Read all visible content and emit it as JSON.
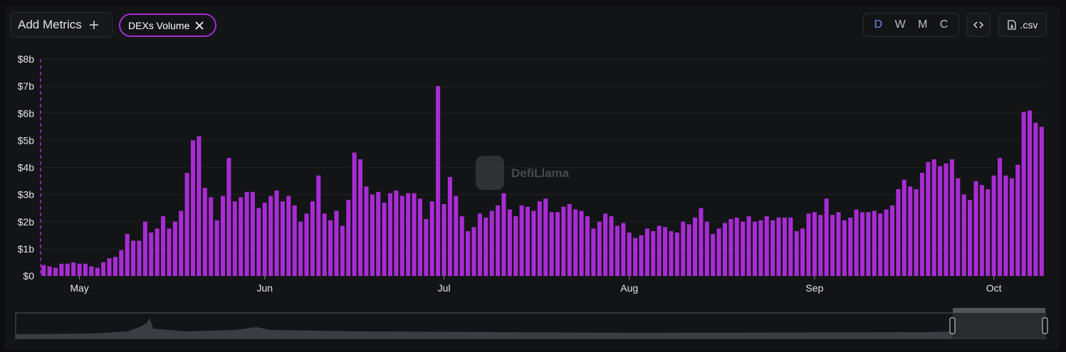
{
  "toolbar": {
    "add_metrics": "Add Metrics",
    "chip": "DEXs Volume",
    "periods": [
      "D",
      "W",
      "M",
      "C"
    ],
    "csv": ".csv"
  },
  "watermark": "DefiLlama",
  "chart_data": {
    "type": "bar",
    "color": "#a82cd3",
    "grid": true,
    "categories": [
      null,
      null,
      null,
      null,
      null,
      null,
      "May",
      null,
      null,
      null,
      null,
      null,
      null,
      null,
      null,
      null,
      null,
      null,
      null,
      null,
      null,
      null,
      null,
      null,
      null,
      null,
      null,
      null,
      null,
      null,
      null,
      null,
      null,
      null,
      null,
      null,
      null,
      "Jun",
      null,
      null,
      null,
      null,
      null,
      null,
      null,
      null,
      null,
      null,
      null,
      null,
      null,
      null,
      null,
      null,
      null,
      null,
      null,
      null,
      null,
      null,
      null,
      null,
      null,
      null,
      null,
      null,
      null,
      "Jul",
      null,
      null,
      null,
      null,
      null,
      null,
      null,
      null,
      null,
      null,
      null,
      null,
      null,
      null,
      null,
      null,
      null,
      null,
      null,
      null,
      null,
      null,
      null,
      null,
      null,
      null,
      null,
      null,
      null,
      null,
      "Aug",
      null,
      null,
      null,
      null,
      null,
      null,
      null,
      null,
      null,
      null,
      null,
      null,
      null,
      null,
      null,
      null,
      null,
      null,
      null,
      null,
      null,
      null,
      null,
      null,
      null,
      null,
      null,
      null,
      null,
      null,
      "Sep",
      null,
      null,
      null,
      null,
      null,
      null,
      null,
      null,
      null,
      null,
      null,
      null,
      null,
      null,
      null,
      null,
      null,
      null,
      null,
      null,
      null,
      null,
      null,
      null,
      null,
      null,
      null,
      null,
      null,
      "Oct",
      null,
      null,
      null,
      null,
      null,
      null,
      null,
      null
    ],
    "values": [
      0.4,
      0.35,
      0.3,
      0.45,
      0.45,
      0.5,
      0.45,
      0.45,
      0.35,
      0.3,
      0.5,
      0.65,
      0.7,
      0.95,
      1.55,
      1.3,
      1.3,
      2.0,
      1.6,
      1.75,
      2.2,
      1.75,
      2.0,
      2.4,
      3.8,
      5.0,
      5.15,
      3.25,
      2.9,
      2.05,
      2.95,
      4.35,
      2.75,
      2.9,
      3.1,
      3.1,
      2.5,
      2.7,
      2.95,
      3.15,
      2.75,
      2.95,
      2.6,
      2.0,
      2.3,
      2.75,
      3.7,
      2.3,
      2.05,
      2.4,
      1.85,
      2.8,
      4.55,
      4.3,
      3.3,
      3.0,
      3.1,
      2.7,
      3.05,
      3.15,
      2.95,
      3.05,
      3.05,
      2.85,
      2.1,
      2.75,
      7.0,
      2.65,
      3.65,
      2.95,
      2.2,
      1.65,
      1.8,
      2.3,
      2.15,
      2.4,
      2.6,
      3.05,
      2.45,
      2.2,
      2.6,
      2.55,
      2.4,
      2.75,
      2.85,
      2.35,
      2.35,
      2.55,
      2.65,
      2.45,
      2.4,
      2.2,
      1.75,
      2.0,
      2.3,
      2.2,
      1.85,
      1.95,
      1.6,
      1.4,
      1.5,
      1.75,
      1.65,
      1.85,
      1.8,
      1.65,
      1.6,
      2.0,
      1.9,
      2.15,
      2.5,
      2.0,
      1.55,
      1.75,
      1.95,
      2.1,
      2.15,
      2.0,
      2.2,
      2.0,
      2.05,
      2.2,
      2.05,
      2.15,
      2.15,
      2.15,
      1.65,
      1.75,
      2.3,
      2.35,
      2.25,
      2.85,
      2.25,
      2.35,
      2.05,
      2.15,
      2.45,
      2.35,
      2.35,
      2.4,
      2.3,
      2.45,
      2.6,
      3.2,
      3.55,
      3.3,
      3.2,
      3.8,
      4.2,
      4.3,
      4.05,
      4.15,
      4.3,
      3.6,
      3.0,
      2.8,
      3.5,
      3.35,
      3.2,
      3.7,
      4.35,
      3.7,
      3.6,
      4.1,
      6.05,
      6.1,
      5.65,
      5.5
    ],
    "ylim": [
      0,
      8
    ],
    "yticks": [
      {
        "value": 0,
        "label": "$0"
      },
      {
        "value": 1,
        "label": "$1b"
      },
      {
        "value": 2,
        "label": "$2b"
      },
      {
        "value": 3,
        "label": "$3b"
      },
      {
        "value": 4,
        "label": "$4b"
      },
      {
        "value": 5,
        "label": "$5b"
      },
      {
        "value": 6,
        "label": "$6b"
      },
      {
        "value": 7,
        "label": "$7b"
      },
      {
        "value": 8,
        "label": "$8b"
      }
    ]
  }
}
